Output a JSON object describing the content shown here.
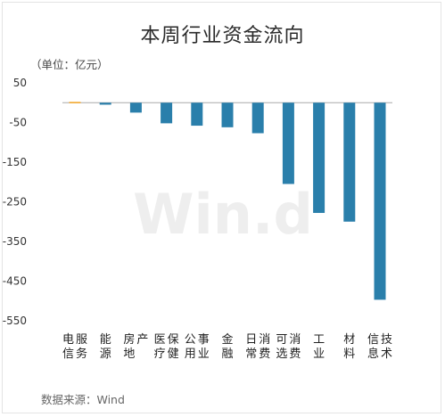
{
  "title": "本周行业资金流向",
  "unit_label": "（单位：亿元）",
  "source": "数据来源：Wind",
  "watermark": "Win.d",
  "colors": {
    "positive": "#f5a623",
    "negative": "#2a7fab",
    "zero_line": "#a9a9a9"
  },
  "chart_data": {
    "type": "bar",
    "title": "本周行业资金流向",
    "ylabel": "（单位：亿元）",
    "xlabel": "",
    "ylim": [
      -550,
      50
    ],
    "yticks": [
      50,
      -50,
      -150,
      -250,
      -350,
      -450,
      -550
    ],
    "grid": false,
    "categories": [
      "电信服务",
      "能源",
      "房地产",
      "医疗保健",
      "公用事业",
      "金融",
      "日常消费",
      "可选消费",
      "工业",
      "材料",
      "信息技术"
    ],
    "values": [
      2,
      -5,
      -25,
      -52,
      -58,
      -62,
      -77,
      -205,
      -278,
      -300,
      -497
    ]
  }
}
